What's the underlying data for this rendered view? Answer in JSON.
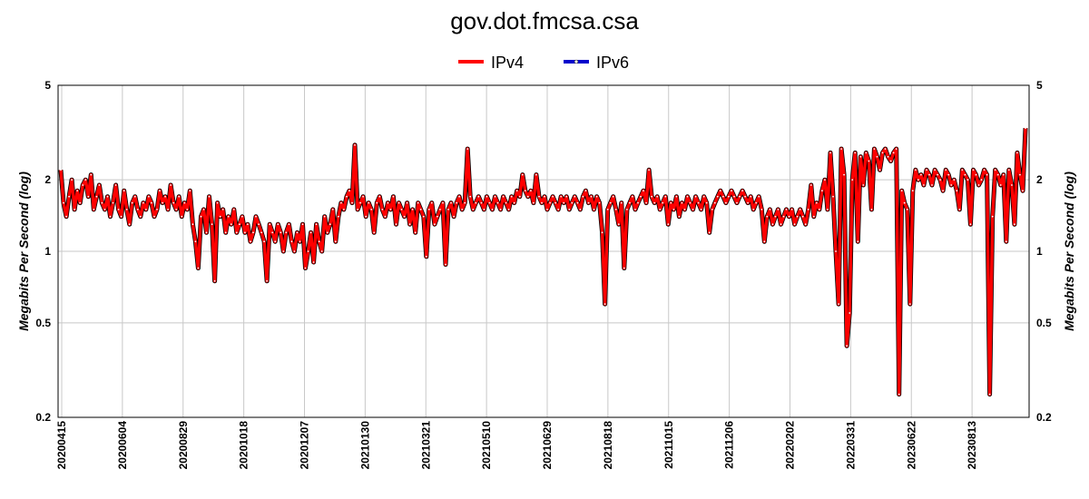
{
  "chart_data": {
    "type": "line",
    "title": "gov.dot.fmcsa.csa",
    "ylabel": "Megabits Per Second (log)",
    "y_scale": "log",
    "ylim": [
      0.2,
      5
    ],
    "y_ticks": [
      0.2,
      0.5,
      1,
      2,
      5
    ],
    "y_tick_labels": [
      "0.2",
      "0.5",
      "1",
      "2",
      "5"
    ],
    "x_tick_labels": [
      "20200415",
      "20200604",
      "20200829",
      "20201018",
      "20201207",
      "20210130",
      "20210321",
      "20210510",
      "20210629",
      "20210818",
      "20211015",
      "20211206",
      "20220202",
      "20220331",
      "20230622",
      "20230813"
    ],
    "legend_position": "top-center",
    "grid": true,
    "series": [
      {
        "name": "IPv4",
        "color": "#ff0000",
        "values": [
          2.2,
          1.6,
          1.4,
          1.7,
          2.0,
          1.5,
          1.8,
          1.6,
          1.9,
          2.0,
          1.7,
          2.1,
          1.5,
          1.7,
          1.9,
          1.6,
          1.5,
          1.7,
          1.4,
          1.6,
          1.9,
          1.5,
          1.4,
          1.8,
          1.5,
          1.3,
          1.6,
          1.7,
          1.5,
          1.4,
          1.6,
          1.5,
          1.7,
          1.6,
          1.4,
          1.5,
          1.8,
          1.6,
          1.7,
          1.5,
          1.9,
          1.6,
          1.5,
          1.7,
          1.4,
          1.6,
          1.5,
          1.8,
          1.3,
          1.1,
          0.85,
          1.4,
          1.5,
          1.2,
          1.7,
          1.3,
          0.75,
          1.6,
          1.4,
          1.5,
          1.2,
          1.4,
          1.3,
          1.5,
          1.2,
          1.3,
          1.4,
          1.2,
          1.3,
          1.1,
          1.2,
          1.4,
          1.3,
          1.2,
          1.1,
          0.75,
          1.3,
          1.2,
          1.1,
          1.3,
          1.2,
          1.0,
          1.2,
          1.3,
          1.1,
          1.0,
          1.2,
          1.1,
          1.3,
          0.85,
          1.0,
          1.2,
          0.9,
          1.3,
          1.1,
          1.0,
          1.4,
          1.2,
          1.3,
          1.5,
          1.1,
          1.4,
          1.6,
          1.5,
          1.7,
          1.8,
          1.6,
          2.8,
          1.5,
          1.6,
          1.7,
          1.4,
          1.6,
          1.5,
          1.2,
          1.6,
          1.7,
          1.5,
          1.4,
          1.6,
          1.5,
          1.7,
          1.3,
          1.6,
          1.5,
          1.4,
          1.6,
          1.3,
          1.5,
          1.2,
          1.6,
          1.5,
          1.4,
          0.95,
          1.5,
          1.6,
          1.3,
          1.4,
          1.5,
          1.6,
          0.88,
          1.5,
          1.6,
          1.4,
          1.6,
          1.7,
          1.5,
          1.6,
          2.7,
          1.7,
          1.5,
          1.6,
          1.7,
          1.6,
          1.5,
          1.7,
          1.6,
          1.5,
          1.7,
          1.6,
          1.5,
          1.7,
          1.6,
          1.5,
          1.7,
          1.6,
          1.8,
          1.7,
          2.1,
          1.8,
          1.7,
          1.8,
          1.6,
          2.1,
          1.7,
          1.6,
          1.7,
          1.5,
          1.6,
          1.7,
          1.6,
          1.5,
          1.7,
          1.6,
          1.7,
          1.5,
          1.6,
          1.7,
          1.6,
          1.5,
          1.7,
          1.8,
          1.6,
          1.7,
          1.5,
          1.7,
          1.6,
          1.2,
          0.6,
          1.5,
          1.6,
          1.7,
          1.5,
          1.3,
          1.6,
          0.85,
          1.5,
          1.6,
          1.7,
          1.5,
          1.6,
          1.7,
          1.8,
          1.6,
          2.2,
          1.7,
          1.6,
          1.7,
          1.5,
          1.6,
          1.7,
          1.3,
          1.6,
          1.5,
          1.7,
          1.4,
          1.6,
          1.5,
          1.7,
          1.6,
          1.5,
          1.7,
          1.6,
          1.5,
          1.7,
          1.6,
          1.2,
          1.5,
          1.6,
          1.7,
          1.8,
          1.7,
          1.6,
          1.7,
          1.8,
          1.7,
          1.6,
          1.7,
          1.8,
          1.7,
          1.6,
          1.7,
          1.5,
          1.6,
          1.7,
          1.5,
          1.1,
          1.4,
          1.5,
          1.3,
          1.4,
          1.5,
          1.3,
          1.4,
          1.5,
          1.4,
          1.5,
          1.3,
          1.4,
          1.5,
          1.4,
          1.3,
          1.5,
          1.9,
          1.4,
          1.6,
          1.5,
          1.8,
          2.0,
          1.5,
          2.6,
          1.7,
          1.0,
          0.6,
          2.7,
          2.1,
          0.4,
          0.55,
          2.0,
          2.6,
          1.1,
          2.5,
          1.9,
          2.6,
          2.4,
          1.5,
          2.7,
          2.5,
          2.2,
          2.6,
          2.7,
          2.5,
          2.4,
          2.6,
          2.7,
          0.25,
          1.8,
          1.6,
          1.5,
          0.6,
          1.8,
          2.2,
          2.0,
          2.1,
          1.9,
          2.2,
          2.1,
          1.9,
          2.2,
          2.1,
          2.0,
          1.8,
          2.2,
          2.1,
          1.9,
          2.0,
          1.8,
          1.5,
          2.2,
          2.1,
          2.0,
          1.3,
          2.2,
          2.1,
          1.9,
          2.0,
          2.2,
          2.1,
          0.25,
          1.4,
          2.2,
          2.1,
          1.9,
          2.1,
          1.1,
          2.2,
          1.9,
          1.3,
          2.6,
          2.1,
          1.8,
          3.3
        ]
      },
      {
        "name": "IPv6",
        "color": "#0000cc",
        "values": []
      }
    ]
  }
}
